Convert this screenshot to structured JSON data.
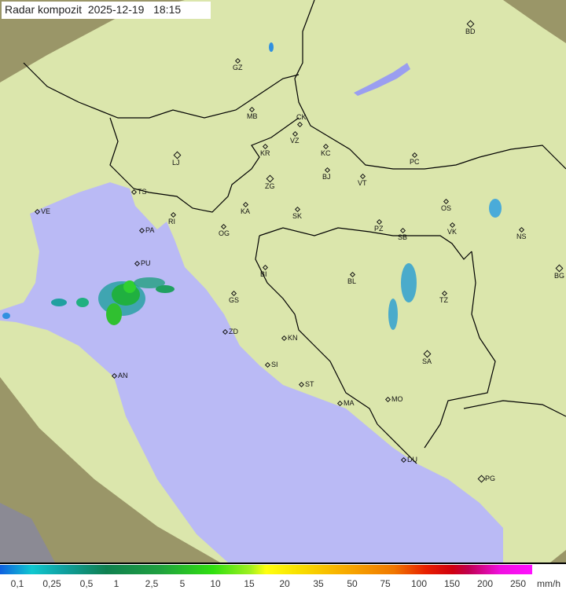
{
  "header": {
    "title": "Radar kompozit  2025-12-19   18:15"
  },
  "colors": {
    "sea": "#babaf5",
    "land_covered": "#dbe6ac",
    "land_outside": "#9a9668",
    "border": "#000000",
    "coast": "#808080"
  },
  "cities": [
    "BD",
    "GZ",
    "MB",
    "CK",
    "VZ",
    "KR",
    "KC",
    "PC",
    "LJ",
    "BJ",
    "VT",
    "ZG",
    "TS",
    "VE",
    "KA",
    "SK",
    "OS",
    "RI",
    "NS",
    "PA",
    "OG",
    "PZ",
    "SB",
    "VK",
    "BG",
    "PU",
    "BI",
    "BL",
    "TZ",
    "GS",
    "ZD",
    "KN",
    "SA",
    "SI",
    "AN",
    "ST",
    "MA",
    "MO",
    "DU",
    "PG"
  ],
  "legend": {
    "labels": [
      "0,1",
      "0,25",
      "0,5",
      "1",
      "2,5",
      "5",
      "10",
      "15",
      "20",
      "35",
      "50",
      "75",
      "100",
      "150",
      "200",
      "250"
    ],
    "unit": "mm/h"
  }
}
